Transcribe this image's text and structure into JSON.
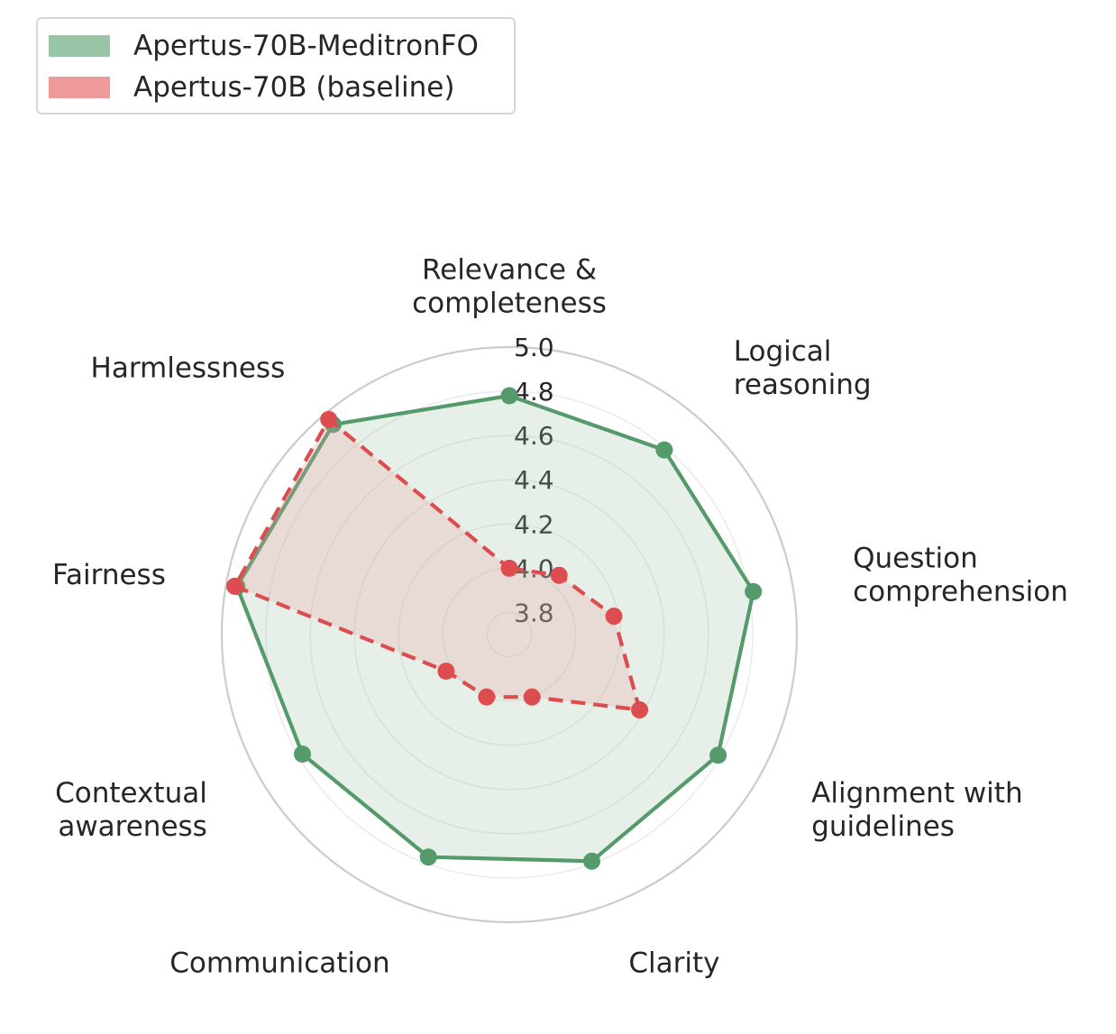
{
  "legend": {
    "items": [
      {
        "label": "Apertus-70B-MeditronFO",
        "color": "#9ac4a6"
      },
      {
        "label": "Apertus-70B (baseline)",
        "color": "#ee9a9a"
      }
    ]
  },
  "chart_data": {
    "type": "radar",
    "title": "",
    "categories": [
      "Relevance & completeness",
      "Logical reasoning",
      "Question comprehension",
      "Alignment with guidelines",
      "Clarity",
      "Communication",
      "Contextual awareness",
      "Fairness",
      "Harmlessness"
    ],
    "rlim": [
      3.7,
      5.0
    ],
    "rticks": [
      3.8,
      4.0,
      4.2,
      4.4,
      4.6,
      4.8,
      5.0
    ],
    "rtick_labels": [
      "3.8",
      "4.0",
      "4.2",
      "4.4",
      "4.6",
      "4.8",
      "5.0"
    ],
    "grid": true,
    "legend_position": "upper-left",
    "series": [
      {
        "name": "Apertus-70B-MeditronFO",
        "color": "#559a6b",
        "fill": "#9ac4a6",
        "line_style": "solid",
        "values": [
          4.78,
          4.79,
          4.82,
          4.79,
          4.79,
          4.77,
          4.78,
          4.95,
          4.94
        ]
      },
      {
        "name": "Apertus-70B (baseline)",
        "color": "#dd4d4f",
        "fill": "#ee9a9a",
        "line_style": "dashed",
        "values": [
          4.0,
          4.05,
          4.18,
          4.38,
          4.0,
          4.0,
          4.03,
          4.96,
          4.97
        ]
      }
    ]
  }
}
